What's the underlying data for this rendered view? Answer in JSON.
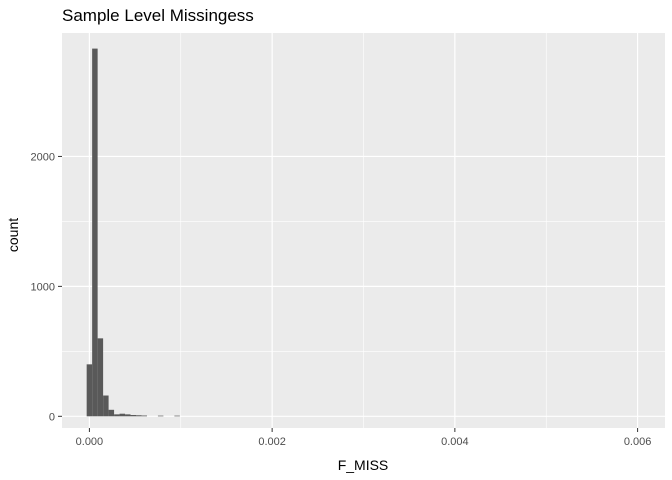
{
  "chart_data": {
    "type": "bar",
    "title": "Sample Level Missingess",
    "xlabel": "F_MISS",
    "ylabel": "count",
    "xlim": [
      -0.0003,
      0.0063
    ],
    "ylim": [
      -90,
      2950
    ],
    "x_ticks": [
      0.0,
      0.002,
      0.004,
      0.006
    ],
    "x_tick_labels": [
      "0.000",
      "0.002",
      "0.004",
      "0.006"
    ],
    "y_ticks": [
      0,
      1000,
      2000
    ],
    "y_tick_labels": [
      "0",
      "1000",
      "2000"
    ],
    "grid": true,
    "bar_color": "#595959",
    "panel_color": "#ebebeb",
    "grid_color": "#ffffff",
    "bins": [
      {
        "start": -3e-05,
        "end": 3e-05,
        "count": 400
      },
      {
        "start": 3e-05,
        "end": 9e-05,
        "count": 2830
      },
      {
        "start": 9e-05,
        "end": 0.00015,
        "count": 600
      },
      {
        "start": 0.00015,
        "end": 0.00021,
        "count": 160
      },
      {
        "start": 0.00021,
        "end": 0.00027,
        "count": 50
      },
      {
        "start": 0.00027,
        "end": 0.00033,
        "count": 15
      },
      {
        "start": 0.00033,
        "end": 0.00039,
        "count": 20
      },
      {
        "start": 0.00039,
        "end": 0.00045,
        "count": 15
      },
      {
        "start": 0.00045,
        "end": 0.00051,
        "count": 10
      },
      {
        "start": 0.00051,
        "end": 0.00057,
        "count": 8
      },
      {
        "start": 0.00057,
        "end": 0.00063,
        "count": 6
      },
      {
        "start": 0.00075,
        "end": 0.00081,
        "count": 5
      },
      {
        "start": 0.00093,
        "end": 0.00099,
        "count": 5
      }
    ]
  }
}
